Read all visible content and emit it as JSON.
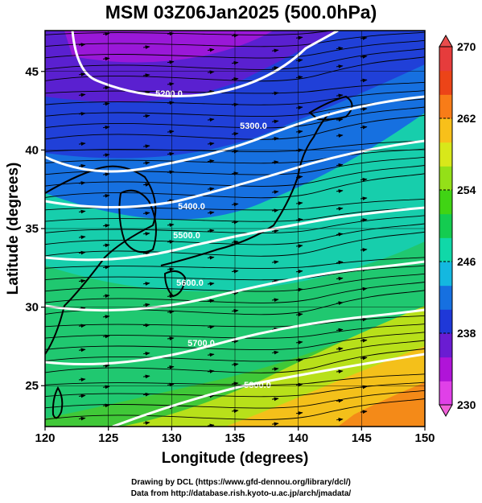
{
  "title": "MSM 03Z06Jan2025 (500.0hPa)",
  "map": {
    "xlabel": "Longitude (degrees)",
    "ylabel": "Latitude  (degrees)",
    "xlim": [
      120,
      150
    ],
    "ylim": [
      22.4,
      47.6
    ],
    "xticks": [
      "120",
      "125",
      "130",
      "135",
      "140",
      "145",
      "150"
    ],
    "yticks": [
      "25",
      "30",
      "35",
      "40",
      "45"
    ],
    "colorbar": {
      "min": 230,
      "max": 270,
      "ticks": [
        "230",
        "238",
        "246",
        "254",
        "262",
        "270"
      ],
      "colors": [
        "#e040e8",
        "#b014d8",
        "#6a1cd2",
        "#1f38d8",
        "#1670e0",
        "#14b8e0",
        "#10d8a8",
        "#14cc50",
        "#40d414",
        "#94e018",
        "#d8e81a",
        "#f8c01a",
        "#f87c18",
        "#ec4418",
        "#e63c3c"
      ]
    },
    "contours": [
      {
        "label": "5200.0"
      },
      {
        "label": "5300.0"
      },
      {
        "label": "5400.0"
      },
      {
        "label": "5500.0"
      },
      {
        "label": "5600.0"
      },
      {
        "label": "5700.0"
      },
      {
        "label": "5800.0"
      }
    ]
  },
  "footer": {
    "line1": "Drawing by DCL (https://www.gfd-dennou.org/library/dcl/)",
    "line2": "Data from http://database.rish.kyoto-u.ac.jp/arch/jmadata/"
  }
}
